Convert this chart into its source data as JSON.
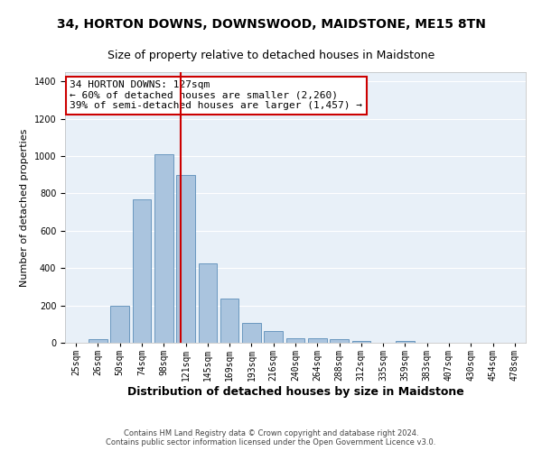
{
  "title": "34, HORTON DOWNS, DOWNSWOOD, MAIDSTONE, ME15 8TN",
  "subtitle": "Size of property relative to detached houses in Maidstone",
  "xlabel": "Distribution of detached houses by size in Maidstone",
  "ylabel": "Number of detached properties",
  "footer_line1": "Contains HM Land Registry data © Crown copyright and database right 2024.",
  "footer_line2": "Contains public sector information licensed under the Open Government Licence v3.0.",
  "annotation_title": "34 HORTON DOWNS: 127sqm",
  "annotation_line2": "← 60% of detached houses are smaller (2,260)",
  "annotation_line3": "39% of semi-detached houses are larger (1,457) →",
  "marker_bin_index": 5,
  "bar_labels": [
    "25sqm",
    "26sqm",
    "50sqm",
    "74sqm",
    "98sqm",
    "121sqm",
    "145sqm",
    "169sqm",
    "193sqm",
    "216sqm",
    "240sqm",
    "264sqm",
    "288sqm",
    "312sqm",
    "335sqm",
    "359sqm",
    "383sqm",
    "407sqm",
    "430sqm",
    "454sqm",
    "478sqm"
  ],
  "bar_heights": [
    0,
    20,
    200,
    770,
    1010,
    900,
    425,
    235,
    105,
    65,
    25,
    25,
    20,
    10,
    0,
    10,
    0,
    0,
    0,
    0,
    0
  ],
  "bar_color": "#aac4de",
  "bar_edgecolor": "#5b8db8",
  "marker_color": "#cc0000",
  "background_color": "#e8f0f8",
  "grid_color": "#ffffff",
  "ylim": [
    0,
    1450
  ],
  "yticks": [
    0,
    200,
    400,
    600,
    800,
    1000,
    1200,
    1400
  ],
  "annotation_box_facecolor": "#ffffff",
  "annotation_box_edgecolor": "#cc0000",
  "title_fontsize": 10,
  "subtitle_fontsize": 9,
  "xlabel_fontsize": 9,
  "ylabel_fontsize": 8,
  "tick_fontsize": 7,
  "footer_fontsize": 6,
  "annotation_fontsize": 8
}
